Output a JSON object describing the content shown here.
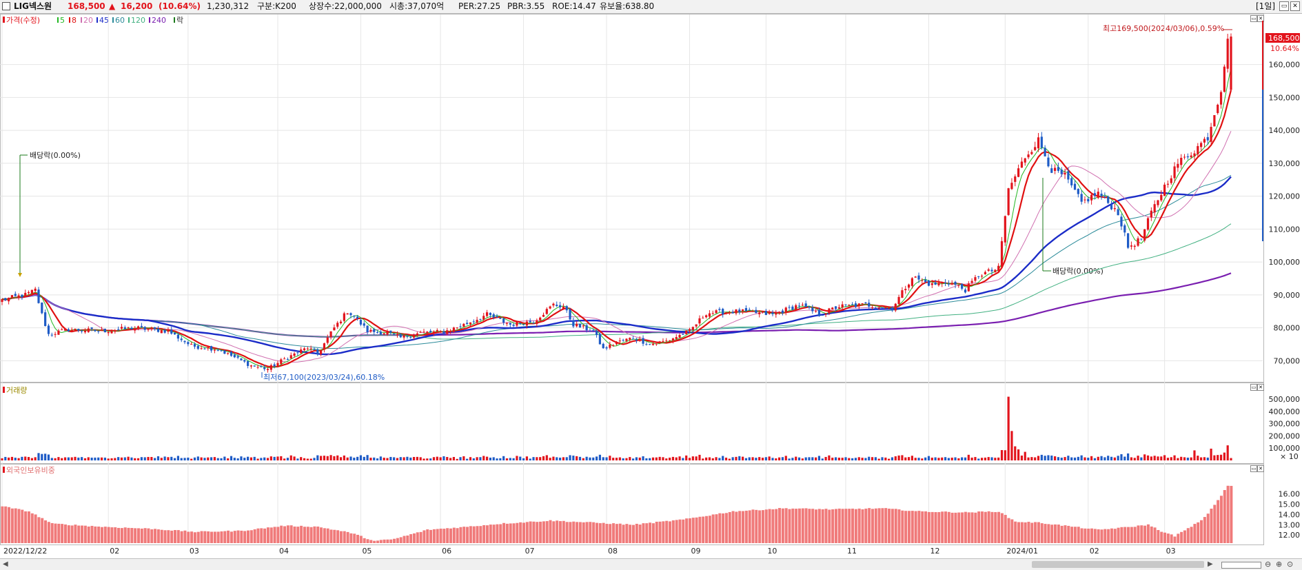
{
  "header": {
    "name": "LIG넥스원",
    "price": "168,500",
    "change_arrow": "▲",
    "change": "16,200",
    "change_pct": "(10.64%)",
    "volume": "1,230,312",
    "gubun": "구분:K200",
    "shares": "상장수:22,000,000",
    "marketcap": "시총:37,070억",
    "per": "PER:27.25",
    "pbr": "PBR:3.55",
    "roe": "ROE:14.47",
    "reserve": "유보율:638.80",
    "period": "[1일]"
  },
  "colors": {
    "up": "#e2141c",
    "down": "#1e5bc6",
    "ma5": "#22b722",
    "ma8": "#e01010",
    "ma20": "#d070b0",
    "ma45": "#1b2cc8",
    "ma60": "#2a8a99",
    "ma120": "#40b080",
    "ma240": "#7a1fb0",
    "foreign": "#f07a7a"
  },
  "chart_data": [
    {
      "type": "candlestick",
      "legend": {
        "price_label": "가격(수정)",
        "ma5": "5",
        "ma8": "8",
        "ma20": "20",
        "ma45": "45",
        "ma60": "60",
        "ma120": "120",
        "ma240": "240",
        "rak": "락"
      },
      "y_ticks": [
        {
          "v": 70000,
          "t": "70,000"
        },
        {
          "v": 80000,
          "t": "80,000"
        },
        {
          "v": 90000,
          "t": "90,000"
        },
        {
          "v": 100000,
          "t": "100,000"
        },
        {
          "v": 110000,
          "t": "110,000"
        },
        {
          "v": 120000,
          "t": "120,000"
        },
        {
          "v": 130000,
          "t": "130,000"
        },
        {
          "v": 140000,
          "t": "140,000"
        },
        {
          "v": 150000,
          "t": "150,000"
        },
        {
          "v": 160000,
          "t": "160,000"
        }
      ],
      "ylim": [
        64000,
        175000
      ],
      "current_price_tag": "168,500",
      "current_pct_tag": "10.64%",
      "annotations": {
        "high": "최고169,500(2024/03/06),0.59%",
        "low": "최저67,100(2023/03/24),60.18%",
        "div1": "배당락(0.00%)",
        "div2": "배당락(0.00%)"
      },
      "price_anchors": [
        [
          0,
          88500
        ],
        [
          7,
          90000
        ],
        [
          10,
          91500
        ],
        [
          12,
          84000
        ],
        [
          14,
          78000
        ],
        [
          20,
          79500
        ],
        [
          30,
          79000
        ],
        [
          40,
          80000
        ],
        [
          50,
          79000
        ],
        [
          57,
          74500
        ],
        [
          65,
          73500
        ],
        [
          75,
          68500
        ],
        [
          80,
          67500
        ],
        [
          85,
          70500
        ],
        [
          92,
          74000
        ],
        [
          95,
          72000
        ],
        [
          100,
          80000
        ],
        [
          104,
          85000
        ],
        [
          106,
          83500
        ],
        [
          110,
          79000
        ],
        [
          116,
          78500
        ],
        [
          120,
          77000
        ],
        [
          126,
          78500
        ],
        [
          133,
          78800
        ],
        [
          138,
          80500
        ],
        [
          146,
          84000
        ],
        [
          153,
          81000
        ],
        [
          160,
          82000
        ],
        [
          166,
          87000
        ],
        [
          169,
          86500
        ],
        [
          172,
          81000
        ],
        [
          178,
          79000
        ],
        [
          181,
          73500
        ],
        [
          185,
          75500
        ],
        [
          190,
          77000
        ],
        [
          195,
          75000
        ],
        [
          200,
          76000
        ],
        [
          207,
          79000
        ],
        [
          212,
          84500
        ],
        [
          222,
          85000
        ],
        [
          232,
          84000
        ],
        [
          240,
          87000
        ],
        [
          246,
          84000
        ],
        [
          252,
          86500
        ],
        [
          260,
          87000
        ],
        [
          268,
          86000
        ],
        [
          274,
          95500
        ],
        [
          280,
          93000
        ],
        [
          285,
          94000
        ],
        [
          290,
          91500
        ],
        [
          294,
          96000
        ],
        [
          300,
          98000
        ],
        [
          303,
          122000
        ],
        [
          308,
          132000
        ],
        [
          312,
          137000
        ],
        [
          316,
          128000
        ],
        [
          320,
          126000
        ],
        [
          325,
          118000
        ],
        [
          330,
          121000
        ],
        [
          336,
          115000
        ],
        [
          339,
          104500
        ],
        [
          343,
          107000
        ],
        [
          346,
          115000
        ],
        [
          350,
          123000
        ],
        [
          354,
          130000
        ],
        [
          359,
          134000
        ],
        [
          363,
          138000
        ],
        [
          367,
          152500
        ],
        [
          369,
          168500
        ]
      ],
      "volume_panel": {
        "label": "거래량",
        "y_ticks": [
          "500,000",
          "400,000",
          "300,000",
          "200,000",
          "100,000"
        ],
        "unit": "× 10",
        "spike_value": 5200000
      },
      "foreign_panel": {
        "label": "외국인보유비중",
        "y_ticks": [
          "16.00",
          "15.00",
          "14.00",
          "13.00",
          "12.00"
        ],
        "ylim": [
          11.2,
          17.8
        ],
        "anchors": [
          [
            0,
            14.8
          ],
          [
            8,
            14.3
          ],
          [
            15,
            13.1
          ],
          [
            30,
            12.8
          ],
          [
            45,
            12.6
          ],
          [
            58,
            12.3
          ],
          [
            72,
            12.4
          ],
          [
            85,
            12.9
          ],
          [
            95,
            12.8
          ],
          [
            105,
            12.2
          ],
          [
            112,
            11.4
          ],
          [
            118,
            11.6
          ],
          [
            128,
            12.5
          ],
          [
            140,
            12.8
          ],
          [
            150,
            13.1
          ],
          [
            165,
            13.4
          ],
          [
            178,
            13.2
          ],
          [
            190,
            13.0
          ],
          [
            205,
            13.5
          ],
          [
            220,
            14.3
          ],
          [
            235,
            14.6
          ],
          [
            250,
            14.5
          ],
          [
            265,
            14.6
          ],
          [
            276,
            14.3
          ],
          [
            290,
            14.2
          ],
          [
            300,
            14.3
          ],
          [
            305,
            13.3
          ],
          [
            312,
            13.2
          ],
          [
            320,
            12.9
          ],
          [
            330,
            12.5
          ],
          [
            340,
            12.8
          ],
          [
            345,
            13.0
          ],
          [
            350,
            12.2
          ],
          [
            353,
            11.9
          ],
          [
            358,
            12.8
          ],
          [
            362,
            13.7
          ],
          [
            366,
            15.4
          ],
          [
            369,
            16.8
          ]
        ]
      },
      "x_labels": [
        {
          "i": 0,
          "t": "2022/12/22"
        },
        {
          "i": 32,
          "t": "02"
        },
        {
          "i": 56,
          "t": "03"
        },
        {
          "i": 83,
          "t": "04"
        },
        {
          "i": 108,
          "t": "05"
        },
        {
          "i": 132,
          "t": "06"
        },
        {
          "i": 157,
          "t": "07"
        },
        {
          "i": 182,
          "t": "08"
        },
        {
          "i": 207,
          "t": "09"
        },
        {
          "i": 230,
          "t": "10"
        },
        {
          "i": 254,
          "t": "11"
        },
        {
          "i": 279,
          "t": "12"
        },
        {
          "i": 302,
          "t": "2024/01"
        },
        {
          "i": 327,
          "t": "02"
        },
        {
          "i": 350,
          "t": "03"
        }
      ],
      "n_days": 371
    }
  ]
}
